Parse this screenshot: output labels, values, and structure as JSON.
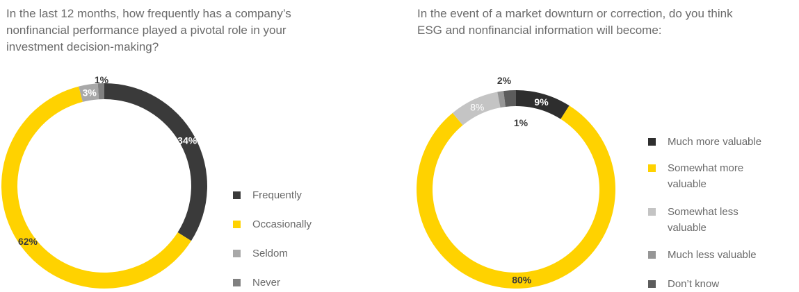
{
  "charts": [
    {
      "question": "In the last 12 months, how frequently has a company’s\nnonfinancial performance played a pivotal role in your\ninvestment decision-making?",
      "chart_data": {
        "type": "donut",
        "categories": [
          "Frequently",
          "Occasionally",
          "Seldom",
          "Never"
        ],
        "values": [
          34,
          62,
          3,
          1
        ],
        "value_labels": [
          "34%",
          "62%",
          "3%",
          "1%"
        ],
        "colors": [
          "#3a3a3a",
          "#ffd200",
          "#a8a8a8",
          "#808080"
        ]
      }
    },
    {
      "question": "In the event of a market downturn or correction, do you think\nESG and nonfinancial information will become:",
      "chart_data": {
        "type": "donut",
        "categories": [
          "Much more valuable",
          "Somewhat more\nvaluable",
          "Somewhat less\nvaluable",
          "Much less valuable",
          "Don’t know"
        ],
        "values": [
          9,
          80,
          8,
          1,
          2
        ],
        "value_labels": [
          "9%",
          "80%",
          "8%",
          "1%",
          "2%"
        ],
        "colors": [
          "#2e2e2e",
          "#ffd200",
          "#c4c4c4",
          "#969696",
          "#5c5c5c"
        ]
      }
    }
  ]
}
